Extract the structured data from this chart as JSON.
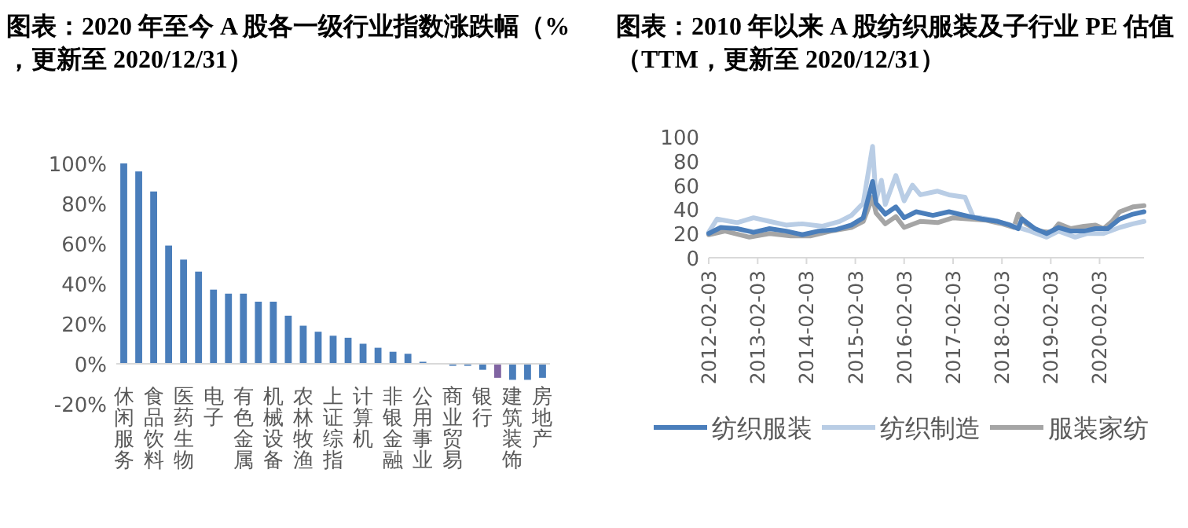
{
  "chart_data": [
    {
      "type": "bar",
      "title": "图表：2020 年至今 A 股各一级行业指数涨跌幅（%，更新至 2020/12/31）",
      "categories": [
        "休闲服务",
        null,
        "食品饮料",
        null,
        "医药生物",
        null,
        "电子",
        null,
        "有色金属",
        null,
        "机械设备",
        null,
        "农林牧渔",
        null,
        "上证综指",
        null,
        "计算机",
        null,
        "非银金融",
        null,
        "公用事业",
        null,
        "商业贸易",
        null,
        "银行",
        null,
        "建筑装饰",
        null,
        "房地产"
      ],
      "values": [
        100,
        96,
        86,
        59,
        52,
        46,
        37,
        35,
        35,
        31,
        31,
        24,
        19,
        16,
        14,
        13,
        10,
        8,
        6,
        5,
        1,
        0,
        -1,
        -1,
        -3,
        -7,
        -8,
        -8,
        -7
      ],
      "colors": [
        "#4a7ebb",
        "#4a7ebb",
        "#4a7ebb",
        "#4a7ebb",
        "#4a7ebb",
        "#4a7ebb",
        "#4a7ebb",
        "#4a7ebb",
        "#4a7ebb",
        "#4a7ebb",
        "#4a7ebb",
        "#4a7ebb",
        "#4a7ebb",
        "#4a7ebb",
        "#4a7ebb",
        "#4a7ebb",
        "#4a7ebb",
        "#4a7ebb",
        "#4a7ebb",
        "#4a7ebb",
        "#4a7ebb",
        "#4a7ebb",
        "#4a7ebb",
        "#4a7ebb",
        "#4a7ebb",
        "#8064a2",
        "#4a7ebb",
        "#4a7ebb",
        "#4a7ebb"
      ],
      "ylim": [
        -20,
        100
      ],
      "yticks": [
        {
          "value": -20,
          "label": "-20%"
        },
        {
          "value": 0,
          "label": "0%"
        },
        {
          "value": 20,
          "label": "20%"
        },
        {
          "value": 40,
          "label": "40%"
        },
        {
          "value": 60,
          "label": "60%"
        },
        {
          "value": 80,
          "label": "80%"
        },
        {
          "value": 100,
          "label": "100%"
        }
      ],
      "grid": false,
      "legend": false
    },
    {
      "type": "line",
      "title": "图表：2010 年以来 A 股纺织服装及子行业 PE 估值（TTM，更新至 2020/12/31）",
      "xlim": [
        "2012-02-03",
        "2020-12-31"
      ],
      "xticks": [
        "2012-02-03",
        "2013-02-03",
        "2014-02-03",
        "2015-02-03",
        "2016-02-03",
        "2017-02-03",
        "2018-02-03",
        "2019-02-03",
        "2020-02-03"
      ],
      "ylim": [
        0,
        100
      ],
      "yticks": [
        0,
        20,
        40,
        60,
        80,
        100
      ],
      "grid": false,
      "legend": "bottom",
      "marker": "none",
      "line_style": "solid",
      "series": [
        {
          "name": "纺织服装",
          "color": "#4a7ebb",
          "x": [
            "2012-02-03",
            "2012-05-03",
            "2012-09-03",
            "2013-01-03",
            "2013-05-03",
            "2013-09-03",
            "2014-01-03",
            "2014-05-03",
            "2014-09-03",
            "2015-01-05",
            "2015-04-03",
            "2015-06-12",
            "2015-07-08",
            "2015-09-15",
            "2015-12-03",
            "2016-02-03",
            "2016-05-03",
            "2016-09-05",
            "2017-01-03",
            "2017-06-05",
            "2017-09-04",
            "2018-01-03",
            "2018-04-03",
            "2018-06-04",
            "2018-07-03",
            "2018-10-08",
            "2019-01-03",
            "2019-04-03",
            "2019-07-03",
            "2019-10-08",
            "2020-01-03",
            "2020-04-03",
            "2020-07-03",
            "2020-10-09",
            "2020-12-31"
          ],
          "values": [
            20,
            25,
            24,
            21,
            24,
            22,
            19,
            22,
            23,
            27,
            33,
            63,
            45,
            36,
            42,
            33,
            38,
            35,
            38,
            34,
            32,
            30,
            27,
            24,
            32,
            24,
            20,
            25,
            22,
            22,
            24,
            24,
            32,
            36,
            38
          ]
        },
        {
          "name": "纺织制造",
          "color": "#b9cde5",
          "x": [
            "2012-02-03",
            "2012-04-05",
            "2012-09-03",
            "2013-01-03",
            "2013-05-03",
            "2013-09-03",
            "2014-01-03",
            "2014-06-03",
            "2014-10-08",
            "2015-01-05",
            "2015-04-03",
            "2015-06-12",
            "2015-07-08",
            "2015-08-17",
            "2015-09-15",
            "2015-12-03",
            "2016-02-03",
            "2016-04-05",
            "2016-06-03",
            "2016-10-10",
            "2017-01-03",
            "2017-05-03",
            "2017-07-03",
            "2017-12-04",
            "2018-05-03",
            "2018-09-03",
            "2019-01-03",
            "2019-04-03",
            "2019-08-05",
            "2019-11-04",
            "2020-03-03",
            "2020-07-03",
            "2020-10-09",
            "2020-12-31"
          ],
          "values": [
            21,
            32,
            29,
            33,
            30,
            27,
            28,
            26,
            30,
            35,
            45,
            92,
            48,
            64,
            44,
            68,
            47,
            60,
            52,
            55,
            52,
            50,
            34,
            31,
            26,
            22,
            17,
            22,
            17,
            20,
            20,
            25,
            28,
            30
          ]
        },
        {
          "name": "服装家纺",
          "color": "#a5a5a5",
          "x": [
            "2012-02-03",
            "2012-06-04",
            "2012-12-03",
            "2013-05-03",
            "2013-10-08",
            "2014-03-03",
            "2014-08-04",
            "2015-01-05",
            "2015-04-03",
            "2015-06-12",
            "2015-07-08",
            "2015-09-15",
            "2015-12-03",
            "2016-02-03",
            "2016-06-03",
            "2016-10-10",
            "2017-02-03",
            "2017-06-05",
            "2017-10-09",
            "2018-02-05",
            "2018-05-03",
            "2018-06-04",
            "2018-08-03",
            "2018-11-05",
            "2019-02-11",
            "2019-04-03",
            "2019-07-03",
            "2019-10-08",
            "2020-01-03",
            "2020-03-03",
            "2020-05-06",
            "2020-07-03",
            "2020-10-09",
            "2020-12-31"
          ],
          "values": [
            19,
            22,
            17,
            20,
            18,
            18,
            22,
            25,
            30,
            50,
            37,
            28,
            34,
            25,
            30,
            29,
            33,
            32,
            31,
            28,
            25,
            36,
            28,
            22,
            21,
            28,
            24,
            26,
            27,
            24,
            30,
            38,
            42,
            43
          ]
        }
      ]
    }
  ]
}
